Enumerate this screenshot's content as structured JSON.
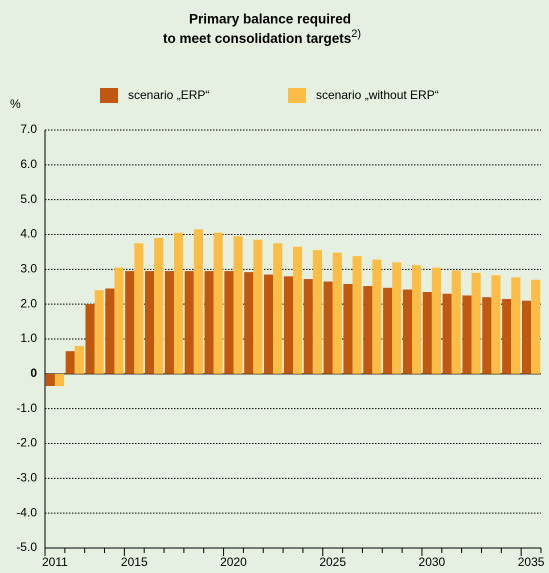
{
  "chart_data": {
    "type": "bar",
    "title": [
      "Primary balance required",
      "to meet consolidation targets"
    ],
    "title_note": "2)",
    "y_label": "%",
    "categories": [
      "2011",
      null,
      null,
      null,
      "2015",
      null,
      null,
      null,
      null,
      "2020",
      null,
      null,
      null,
      null,
      "2025",
      null,
      null,
      null,
      null,
      "2030",
      null,
      null,
      null,
      null,
      "2035"
    ],
    "series": [
      {
        "name": "scenario „ERP“",
        "color": "#c0580f",
        "values": [
          -0.35,
          0.65,
          2.0,
          2.45,
          2.95,
          2.95,
          2.95,
          2.95,
          2.95,
          2.95,
          2.92,
          2.85,
          2.8,
          2.72,
          2.65,
          2.58,
          2.52,
          2.47,
          2.42,
          2.35,
          2.3,
          2.25,
          2.2,
          2.15,
          2.1
        ]
      },
      {
        "name": "scenario „without ERP“",
        "color": "#fbbd45",
        "values": [
          -0.35,
          0.8,
          2.4,
          3.05,
          3.75,
          3.9,
          4.05,
          4.15,
          4.05,
          3.95,
          3.85,
          3.75,
          3.65,
          3.55,
          3.48,
          3.38,
          3.28,
          3.2,
          3.12,
          3.05,
          2.97,
          2.9,
          2.83,
          2.77,
          2.7
        ]
      }
    ],
    "ylim": [
      -5,
      7
    ],
    "yticks": [
      {
        "value": 7,
        "label": "7.0"
      },
      {
        "value": 6,
        "label": "6.0"
      },
      {
        "value": 5,
        "label": "5.0"
      },
      {
        "value": 4,
        "label": "4.0"
      },
      {
        "value": 3,
        "label": "3.0"
      },
      {
        "value": 2,
        "label": "2.0"
      },
      {
        "value": 1,
        "label": "1.0"
      },
      0,
      {
        "value": -1,
        "label": "-1.0"
      },
      {
        "value": -2,
        "label": "-2.0"
      },
      {
        "value": -3,
        "label": "-3.0"
      },
      {
        "value": -4,
        "label": "-4.0"
      },
      {
        "value": -5,
        "label": "-5.0"
      }
    ],
    "grid": true
  }
}
